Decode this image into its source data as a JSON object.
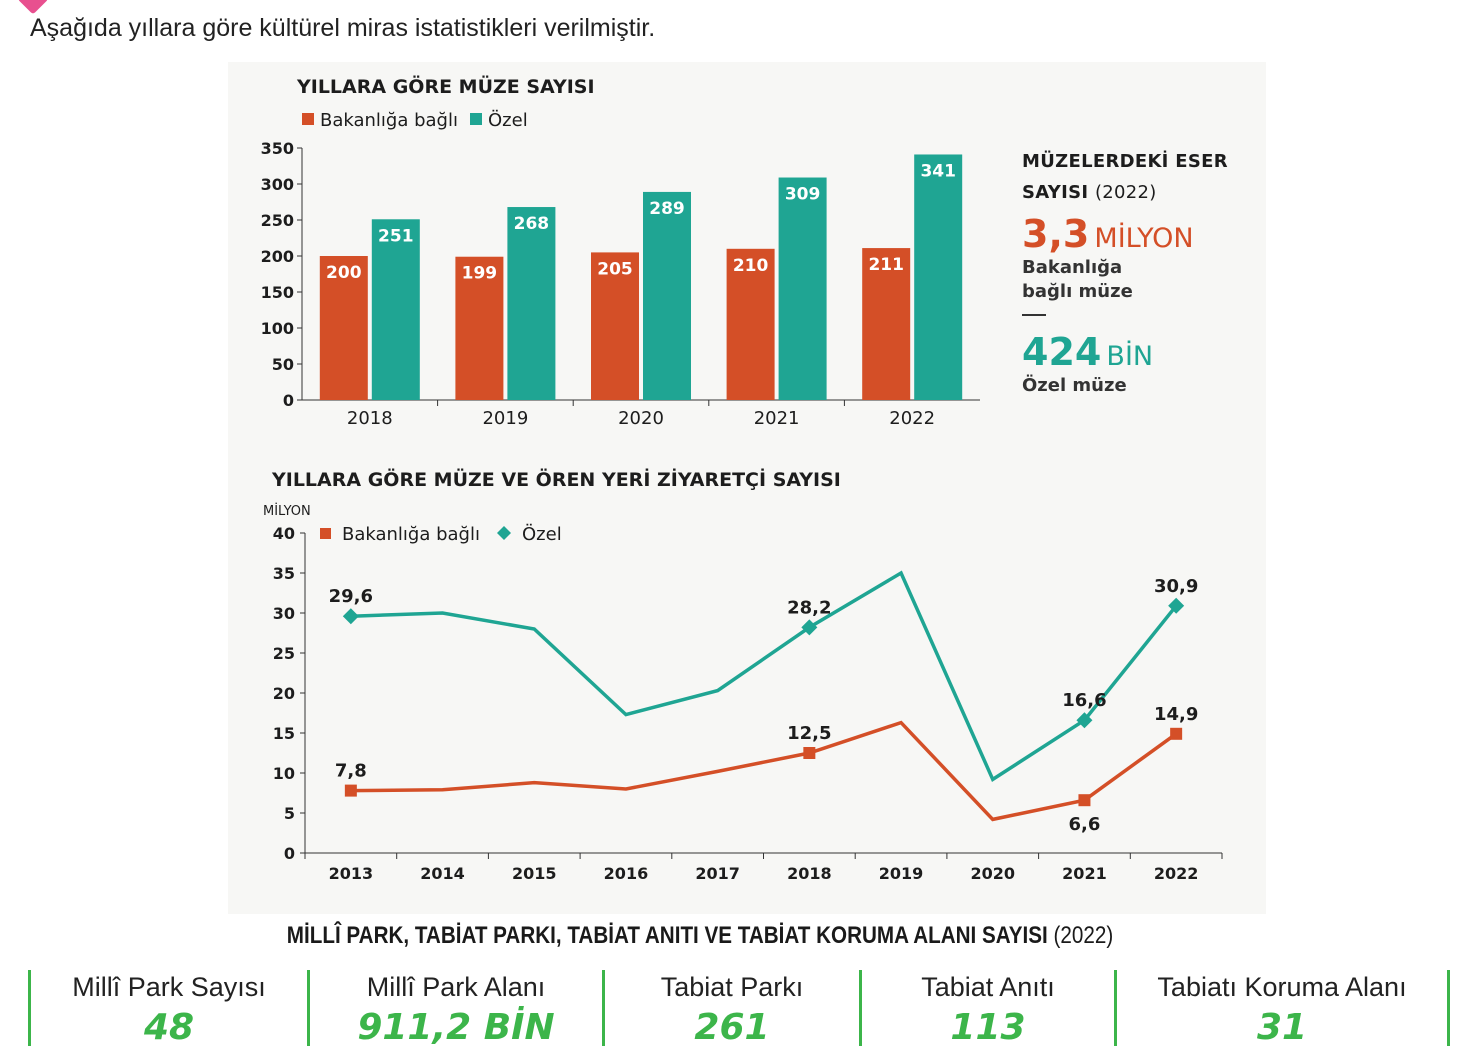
{
  "intro_text": "Aşağıda yıllara göre kültürel miras istatistikleri verilmiştir.",
  "colors": {
    "red": "#d44f27",
    "teal": "#1fa593",
    "green": "#3cb54a"
  },
  "chart_data": [
    {
      "type": "bar",
      "title": "YILLARA GÖRE MÜZE SAYISI",
      "categories": [
        "2018",
        "2019",
        "2020",
        "2021",
        "2022"
      ],
      "series": [
        {
          "name": "Bakanlığa bağlı",
          "values": [
            200,
            199,
            205,
            210,
            211
          ]
        },
        {
          "name": "Özel",
          "values": [
            251,
            268,
            289,
            309,
            341
          ]
        }
      ],
      "ylim": [
        0,
        350
      ],
      "yticks": [
        0,
        50,
        100,
        150,
        200,
        250,
        300,
        350
      ],
      "legend": "top-left"
    },
    {
      "type": "line",
      "title": "YILLARA GÖRE MÜZE VE ÖREN YERİ ZİYARETÇİ SAYISI",
      "ylabel": "MİLYON",
      "x": [
        "2013",
        "2014",
        "2015",
        "2016",
        "2017",
        "2018",
        "2019",
        "2020",
        "2021",
        "2022"
      ],
      "series": [
        {
          "name": "Bakanlığa bağlı",
          "values": [
            7.8,
            7.9,
            8.8,
            8.0,
            10.2,
            12.5,
            16.3,
            4.2,
            6.6,
            14.9
          ],
          "labels": {
            "0": "7,8",
            "5": "12,5",
            "8": "6,6",
            "9": "14,9"
          }
        },
        {
          "name": "Özel",
          "values": [
            29.6,
            30.0,
            28.0,
            17.3,
            20.3,
            28.2,
            35.0,
            9.2,
            16.6,
            30.9
          ],
          "labels": {
            "0": "29,6",
            "5": "28,2",
            "8": "16,6",
            "9": "30,9"
          }
        }
      ],
      "ylim": [
        0,
        40
      ],
      "yticks": [
        0,
        5,
        10,
        15,
        20,
        25,
        30,
        35,
        40
      ],
      "legend": "top-left"
    }
  ],
  "side_info": {
    "heading_bold": "MÜZELERDEKİ ESER SAYISI",
    "heading_year": "(2022)",
    "ministry_value": "3,3",
    "ministry_unit": "MİLYON",
    "ministry_label": "Bakanlığa bağlı müze",
    "private_value": "424",
    "private_unit": "BİN",
    "private_label": "Özel müze"
  },
  "parks": {
    "title_bold": "MİLLÎ PARK, TABİAT PARKI, TABİAT ANITI VE TABİAT KORUMA ALANI SAYISI",
    "title_year": "(2022)",
    "items": [
      {
        "label": "Millî Park Sayısı",
        "value": "48"
      },
      {
        "label": "Millî Park Alanı",
        "value": "911,2 BİN"
      },
      {
        "label": "Tabiat Parkı",
        "value": "261"
      },
      {
        "label": "Tabiat Anıtı",
        "value": "113"
      },
      {
        "label": "Tabiatı Koruma Alanı",
        "value": "31"
      }
    ]
  }
}
